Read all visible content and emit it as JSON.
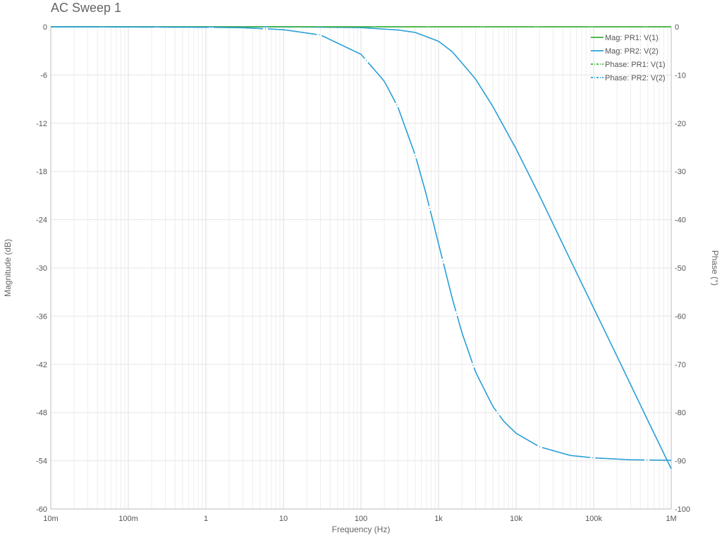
{
  "chart_data": {
    "type": "line",
    "title": "AC Sweep 1",
    "xlabel": "Frequency (Hz)",
    "ylabel_left": "Magnitude (dB)",
    "ylabel_right": "Phase (°)",
    "x_scale": "log",
    "xlim": [
      0.01,
      1000000
    ],
    "ylim_left": [
      -60,
      0
    ],
    "ylim_right": [
      -100,
      0
    ],
    "x_ticks": [
      0.01,
      0.1,
      1,
      10,
      100,
      1000,
      10000,
      100000,
      1000000
    ],
    "x_tick_labels": [
      "10m",
      "100m",
      "1",
      "10",
      "100",
      "1k",
      "10k",
      "100k",
      "1M"
    ],
    "y_ticks_left": [
      0,
      -6,
      -12,
      -18,
      -24,
      -30,
      -36,
      -42,
      -48,
      -54,
      -60
    ],
    "y_tick_labels_left": [
      "0",
      "-6",
      "-12",
      "-18",
      "-24",
      "-30",
      "-36",
      "-42",
      "-48",
      "-54",
      "-60"
    ],
    "y_ticks_right": [
      0,
      -10,
      -20,
      -30,
      -40,
      -50,
      -60,
      -70,
      -80,
      -90,
      -100
    ],
    "y_tick_labels_right": [
      "0",
      "-10",
      "-20",
      "-30",
      "-40",
      "-50",
      "-60",
      "-70",
      "-80",
      "-90",
      "-100"
    ],
    "grid": true,
    "legend_position": "top-right",
    "colors": {
      "green": "#3aae3a",
      "blue": "#2a9fd6"
    },
    "series": [
      {
        "name": "Mag: PR1: V(1)",
        "axis": "left",
        "style": "solid",
        "color": "#3aae3a",
        "x": [
          0.01,
          1000000
        ],
        "y": [
          0,
          0
        ]
      },
      {
        "name": "Mag: PR2: V(2)",
        "axis": "left",
        "style": "solid",
        "color": "#2a9fd6",
        "x": [
          0.01,
          10,
          100,
          300,
          500,
          1000,
          1500,
          2000,
          3000,
          5000,
          10000,
          20000,
          50000,
          100000,
          200000,
          500000,
          1000000
        ],
        "y": [
          0,
          0,
          -0.1,
          -0.4,
          -0.7,
          -1.8,
          -3.1,
          -4.5,
          -6.5,
          -9.9,
          -15.2,
          -21,
          -29,
          -35,
          -41,
          -49,
          -55
        ]
      },
      {
        "name": "Phase: PR1: V(1)",
        "axis": "right",
        "style": "dash-dot",
        "color": "#3aae3a",
        "x": [
          0.01,
          1000000
        ],
        "y": [
          0,
          0
        ]
      },
      {
        "name": "Phase: PR2: V(2)",
        "axis": "right",
        "style": "dash-dot",
        "color": "#2a9fd6",
        "x": [
          0.01,
          1,
          3,
          10,
          30,
          100,
          200,
          300,
          500,
          700,
          1000,
          1500,
          2000,
          3000,
          5000,
          7000,
          10000,
          20000,
          50000,
          100000,
          300000,
          1000000
        ],
        "y": [
          0,
          -0.1,
          -0.2,
          -0.6,
          -1.7,
          -5.7,
          -11.3,
          -16.7,
          -26.6,
          -35,
          -45,
          -56.3,
          -63.4,
          -71.6,
          -78.7,
          -81.9,
          -84.3,
          -87.1,
          -88.9,
          -89.4,
          -89.8,
          -89.9
        ]
      }
    ]
  }
}
